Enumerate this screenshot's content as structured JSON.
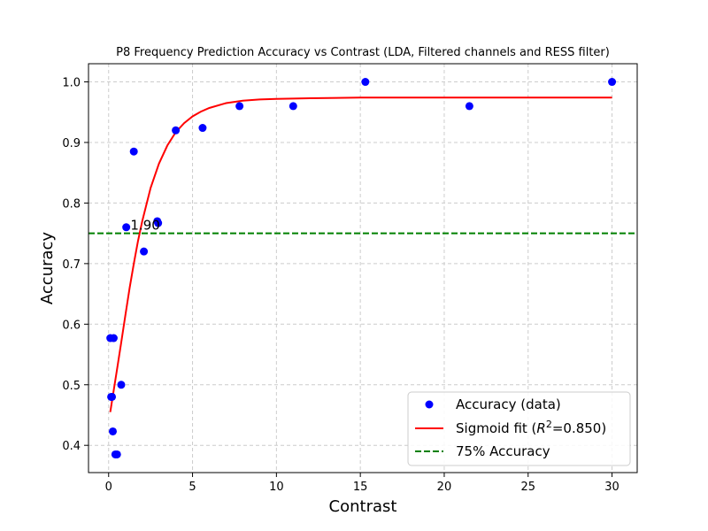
{
  "chart_data": {
    "type": "scatter",
    "title": "P8 Frequency Prediction Accuracy vs Contrast (LDA,  Filtered channels and RESS filter)",
    "xlabel": "Contrast",
    "ylabel": "Accuracy",
    "xlim": [
      -1.2,
      31.5
    ],
    "ylim": [
      0.355,
      1.03
    ],
    "xticks": [
      0,
      5,
      10,
      15,
      20,
      25,
      30
    ],
    "xtick_labels": [
      "0",
      "5",
      "10",
      "15",
      "20",
      "25",
      "30"
    ],
    "yticks": [
      0.4,
      0.5,
      0.6,
      0.7,
      0.8,
      0.9,
      1.0
    ],
    "ytick_labels": [
      "0.4",
      "0.5",
      "0.6",
      "0.7",
      "0.8",
      "0.9",
      "1.0"
    ],
    "grid": true,
    "legend_position": "bottom-right",
    "series": [
      {
        "name": "Accuracy (data)",
        "kind": "scatter",
        "color": "#0000ff",
        "x": [
          0.1,
          0.15,
          0.2,
          0.25,
          0.3,
          0.4,
          0.5,
          0.75,
          1.05,
          1.5,
          2.1,
          2.9,
          2.95,
          4.0,
          5.6,
          7.8,
          11.0,
          15.3,
          21.5,
          30.0
        ],
        "y": [
          0.577,
          0.48,
          0.48,
          0.423,
          0.577,
          0.385,
          0.385,
          0.5,
          0.76,
          0.885,
          0.72,
          0.77,
          0.767,
          0.92,
          0.924,
          0.96,
          0.96,
          1.0,
          0.96,
          1.0
        ]
      },
      {
        "name": "Sigmoid fit (R²=0.850)",
        "legend_prefix": "Sigmoid fit (",
        "legend_math": "R",
        "legend_sup": "2",
        "legend_suffix": "=0.850)",
        "kind": "line",
        "color": "#ff0000",
        "x": [
          0.1,
          0.3,
          0.5,
          0.75,
          1.0,
          1.25,
          1.5,
          1.75,
          2.0,
          2.5,
          3.0,
          3.5,
          4.0,
          4.5,
          5.0,
          5.5,
          6.0,
          7.0,
          8.0,
          9.0,
          10.0,
          12.0,
          15.0,
          20.0,
          25.0,
          30.0
        ],
        "y": [
          0.455,
          0.49,
          0.525,
          0.57,
          0.615,
          0.66,
          0.7,
          0.737,
          0.77,
          0.825,
          0.865,
          0.895,
          0.917,
          0.932,
          0.943,
          0.951,
          0.957,
          0.965,
          0.969,
          0.971,
          0.972,
          0.973,
          0.974,
          0.974,
          0.974,
          0.974
        ]
      },
      {
        "name": "75% Accuracy",
        "kind": "hline",
        "color": "#008000",
        "y": 0.75
      }
    ],
    "annotations": [
      {
        "text": "1.90",
        "x": 1.3,
        "y": 0.765
      }
    ]
  }
}
